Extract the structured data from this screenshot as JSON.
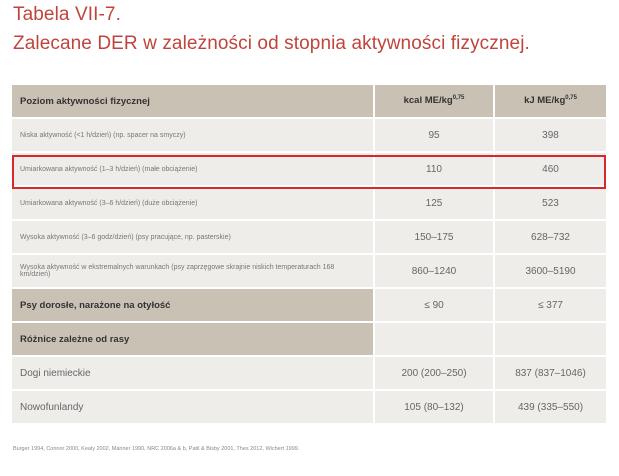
{
  "title": {
    "line1": "Tabela VII-7.",
    "line2": "Zalecane DER w zależności od stopnia aktywności fizycznej."
  },
  "table": {
    "headers": {
      "level": "Poziom aktywności fizycznej",
      "kcal": "kcal ME/kg",
      "kcal_exp": "0,75",
      "kj": "kJ ME/kg",
      "kj_exp": "0,75"
    },
    "rows": [
      {
        "label": "Niska aktywność (<1 h/dzień) (np. spacer na smyczy)",
        "kcal": "95",
        "kj": "398"
      },
      {
        "label": "Umiarkowana aktywność (1–3 h/dzień) (małe obciążenie)",
        "kcal": "110",
        "kj": "460",
        "highlighted": true
      },
      {
        "label": "Umiarkowana aktywność (3–6 h/dzień) (duże obciążenie)",
        "kcal": "125",
        "kj": "523"
      },
      {
        "label": "Wysoka aktywność (3–6 godz/dzień) (psy pracujące, np. pasterskie)",
        "kcal": "150–175",
        "kj": "628–732"
      },
      {
        "label": "Wysoka aktywność w ekstremalnych warunkach (psy zaprzęgowe skrajnie niskich temperaturach 168 km/dzień)",
        "kcal": "860–1240",
        "kj": "3600–5190"
      },
      {
        "label": "Psy dorosłe, narażone na otyłość",
        "kcal": "≤ 90",
        "kj": "≤ 377"
      },
      {
        "label": "Różnice zależne od rasy",
        "kcal": "",
        "kj": ""
      },
      {
        "label": "Dogi niemieckie",
        "kcal": "200 (200–250)",
        "kj": "837 (837–1046)"
      },
      {
        "label": "Nowofunlandy",
        "kcal": "105 (80–132)",
        "kj": "439 (335–550)"
      }
    ],
    "highlight_color": "#d9272e"
  },
  "footer": "Burger 1994, Connor 2000, Kealy 2002, Männer 1990, NRC 2006a & b, Patil & Bisby 2001, Thes 2012, Wichert 1999."
}
